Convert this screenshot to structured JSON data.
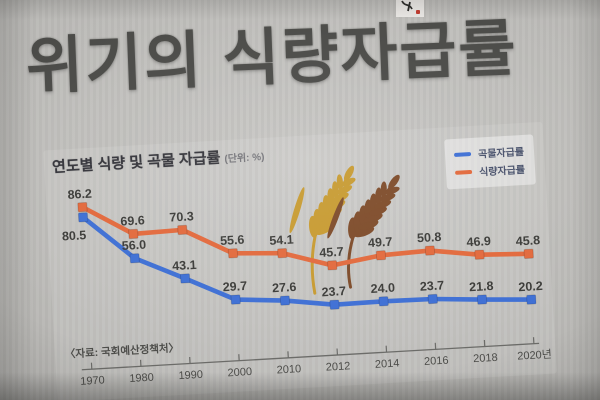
{
  "slide": {
    "title": "위기의 식량자급률"
  },
  "chart": {
    "title": "연도별 식량 및 곡물 자급률",
    "unit_label": "(단위: %)",
    "source": "〈자료: 국회예산정책처〉",
    "legend": [
      {
        "label": "곡물자급률",
        "color": "#3e6fd4"
      },
      {
        "label": "식량자급률",
        "color": "#e2693c"
      }
    ]
  },
  "chart_data": {
    "type": "line",
    "title": "연도별 식량 및 곡물 자급률",
    "xlabel": "",
    "ylabel": "%",
    "ylim": [
      0,
      95
    ],
    "grid": false,
    "legend_position": "top-right",
    "value_labels": true,
    "categories": [
      "1970",
      "1980",
      "1990",
      "2000",
      "2010",
      "2012",
      "2014",
      "2016",
      "2018",
      "2020년"
    ],
    "series": [
      {
        "name": "곡물자급률",
        "color": "#3e6fd4",
        "marker": "square",
        "values": [
          80.5,
          56.0,
          43.1,
          29.7,
          27.6,
          23.7,
          24.0,
          23.7,
          21.8,
          20.2
        ],
        "labels": [
          "80.5",
          "56.0",
          "43.1",
          "29.7",
          "27.6",
          "23.7",
          "24.0",
          "23.7",
          "21.8",
          "20.2"
        ]
      },
      {
        "name": "식량자급률",
        "color": "#e2693c",
        "marker": "square",
        "values": [
          86.2,
          69.6,
          70.3,
          55.6,
          54.1,
          45.7,
          49.7,
          50.8,
          46.9,
          45.8
        ],
        "labels": [
          "86.2",
          "69.6",
          "70.3",
          "55.6",
          "54.1",
          "45.7",
          "49.7",
          "50.8",
          "46.9",
          "45.8"
        ]
      }
    ]
  },
  "decor": {
    "wheat_gold": "#c79a30",
    "wheat_brown": "#7d4a28",
    "stamp_red": "#c23a2e"
  }
}
